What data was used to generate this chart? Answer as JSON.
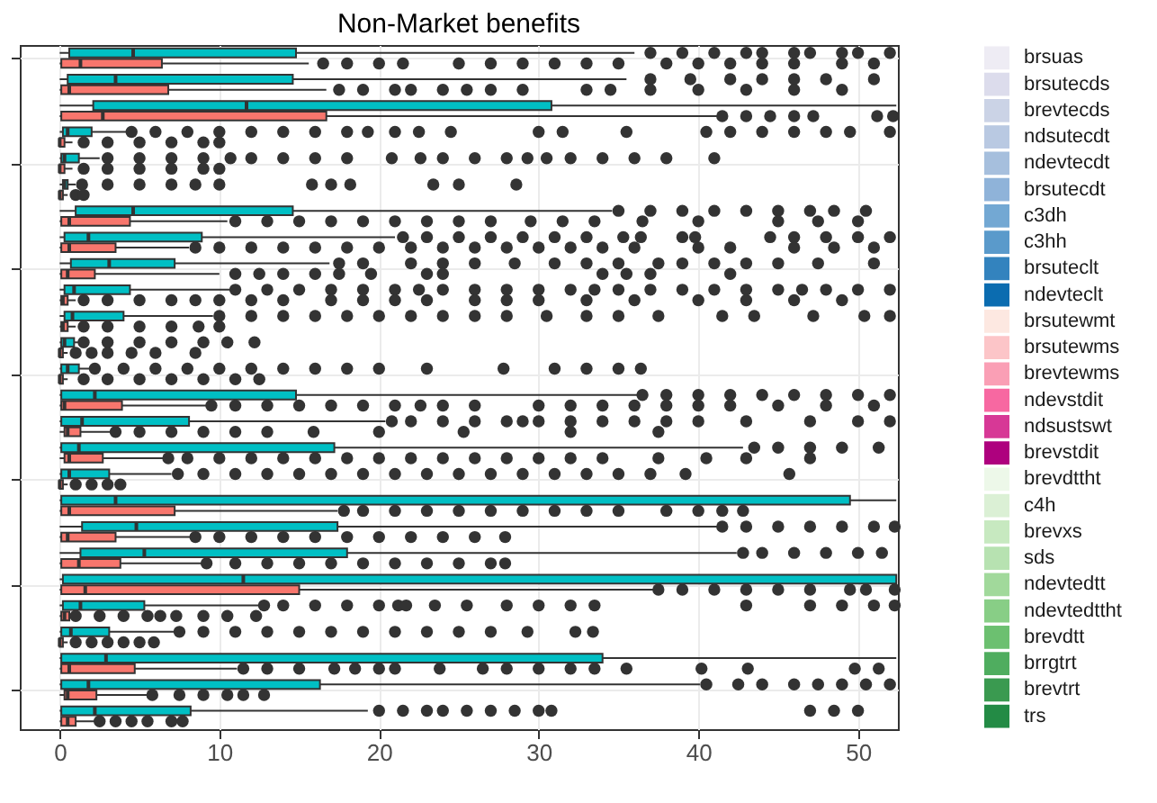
{
  "chart_data": [
    {
      "type": "box",
      "title": "Non-Market benefits",
      "orientation": "horizontal",
      "xlim": [
        -2.5,
        52.5
      ],
      "xticks": [
        0,
        10,
        20,
        30,
        40,
        50
      ],
      "grid": true,
      "tick_labels": "x",
      "categories": [
        null,
        null,
        null,
        null,
        null,
        null,
        null,
        null,
        null,
        null,
        null,
        null,
        null,
        null,
        null,
        null,
        null,
        null,
        null,
        null,
        null,
        null,
        null,
        null,
        null,
        null
      ],
      "series": [
        {
          "color": "#00bfc4",
          "boxes": [
            {
              "low": 0,
              "q1": 0.6,
              "median": 4.6,
              "q3": 14.8,
              "high": 36,
              "outliers": [
                37,
                39,
                41,
                43,
                44,
                46,
                47,
                49,
                50,
                52
              ]
            },
            {
              "low": 0,
              "q1": 0.5,
              "median": 3.5,
              "q3": 14.6,
              "high": 35.5,
              "outliers": [
                37,
                39.5,
                42,
                44,
                46,
                48,
                51
              ]
            },
            {
              "low": 0,
              "q1": 2.1,
              "median": 11.7,
              "q3": 30.8,
              "high": 52.4
            },
            {
              "low": 0,
              "q1": 0.2,
              "median": 0.5,
              "q3": 2.0,
              "high": 4.3,
              "outliers": [
                4.5,
                6,
                8,
                10,
                12,
                14,
                16,
                18,
                19.3,
                21,
                22.5,
                24.5,
                30,
                31.5,
                35.5,
                40.5,
                42,
                44,
                46,
                48,
                49.5,
                52
              ]
            },
            {
              "low": 0,
              "q1": 0.1,
              "median": 0.3,
              "q3": 1.2,
              "high": 2.5,
              "outliers": [
                3,
                5,
                7,
                9,
                10.7,
                12,
                14,
                16,
                18,
                20.8,
                22.6,
                24,
                26,
                28,
                29.3,
                30.5,
                32,
                34,
                36,
                38,
                41
              ]
            },
            {
              "low": 0,
              "q1": 0.2,
              "median": 0.3,
              "q3": 0.5,
              "high": 1,
              "outliers": [
                1.4,
                3,
                5,
                7,
                8.5,
                10,
                15.8,
                17,
                18.2,
                23.4,
                25,
                28.6
              ]
            },
            {
              "low": 0,
              "q1": 1.0,
              "median": 4.6,
              "q3": 14.6,
              "high": 34.6,
              "outliers": [
                35,
                37,
                39,
                41,
                43,
                45,
                47,
                48.5,
                50.5
              ]
            },
            {
              "low": 0,
              "q1": 0.3,
              "median": 1.8,
              "q3": 8.9,
              "high": 21,
              "outliers": [
                21.5,
                23,
                25,
                27,
                29,
                31,
                33,
                35.3,
                36.4,
                39,
                39.8,
                44.5,
                46,
                48,
                50,
                52
              ]
            },
            {
              "low": 0,
              "q1": 0.7,
              "median": 3.1,
              "q3": 7.2,
              "high": 16.9,
              "outliers": [
                17.5,
                19,
                22,
                24,
                26,
                28.5,
                31,
                33,
                35,
                37.5,
                39,
                41,
                43,
                45,
                47.5,
                51
              ]
            },
            {
              "low": 0,
              "q1": 0.3,
              "median": 0.9,
              "q3": 4.4,
              "high": 10.7,
              "outliers": [
                11,
                13,
                15,
                17,
                19,
                21,
                22.5,
                24,
                26,
                28,
                30,
                32,
                33.5,
                35,
                37,
                39,
                41,
                43,
                45,
                46.5,
                48,
                50,
                52
              ]
            },
            {
              "low": 0,
              "q1": 0.3,
              "median": 0.8,
              "q3": 4.0,
              "high": 9.6,
              "outliers": [
                10,
                12,
                14,
                16,
                18,
                20,
                22,
                24,
                26,
                28,
                30.5,
                33,
                35,
                37.5,
                41.5,
                43.5,
                47.2,
                50.4,
                52
              ]
            },
            {
              "low": 0,
              "q1": 0.1,
              "median": 0.3,
              "q3": 0.9,
              "high": 1.2,
              "outliers": [
                1.5,
                3,
                5,
                7,
                9,
                10.5,
                12.2
              ]
            },
            {
              "low": 0,
              "q1": 0.1,
              "median": 0.5,
              "q3": 1.2,
              "high": 2,
              "outliers": [
                2.2,
                4,
                6,
                8,
                10,
                12,
                14,
                16,
                18,
                20,
                23,
                27.8,
                31,
                33,
                35,
                36.4
              ]
            },
            {
              "low": 0,
              "q1": 0.1,
              "median": 2.2,
              "q3": 14.8,
              "high": 36.2,
              "outliers": [
                36.5,
                38,
                40,
                42,
                44,
                46,
                48,
                50,
                52
              ]
            },
            {
              "low": 0,
              "q1": 0.1,
              "median": 1.4,
              "q3": 8.1,
              "high": 20.4,
              "outliers": [
                20.8,
                22,
                24,
                26,
                28,
                29,
                30,
                32,
                34,
                36,
                38,
                40,
                43,
                47,
                50,
                52
              ]
            },
            {
              "low": 0,
              "q1": 0.1,
              "median": 1.2,
              "q3": 17.2,
              "high": 42.8,
              "outliers": [
                43.5,
                45,
                47,
                49,
                51.3
              ]
            },
            {
              "low": 0,
              "q1": 0.1,
              "median": 0.6,
              "q3": 3.1,
              "high": 7,
              "outliers": [
                7.4,
                9,
                11,
                13,
                15,
                17,
                19,
                21,
                23,
                25,
                27,
                29,
                31,
                33,
                35,
                37,
                39.2,
                45.7
              ]
            },
            {
              "low": 0,
              "q1": 0.1,
              "median": 3.5,
              "q3": 49.5,
              "high": 52.4
            },
            {
              "low": 0,
              "q1": 1.4,
              "median": 4.8,
              "q3": 17.4,
              "high": 41.3,
              "outliers": [
                41.5,
                43,
                45,
                47,
                49,
                51,
                52.3
              ]
            },
            {
              "low": 0,
              "q1": 1.3,
              "median": 5.3,
              "q3": 18,
              "high": 42.4,
              "outliers": [
                42.8,
                44,
                46,
                48,
                50,
                51.5
              ]
            },
            {
              "low": 0,
              "q1": 0.2,
              "median": 11.5,
              "q3": 52.4,
              "high": 52.4
            },
            {
              "low": 0,
              "q1": 0.2,
              "median": 1.3,
              "q3": 5.3,
              "high": 12.6,
              "outliers": [
                12.8,
                14,
                16,
                18,
                20,
                21.2,
                21.7,
                23.5,
                25.5,
                28,
                30,
                32,
                33.5,
                43,
                47,
                49,
                51,
                52.3
              ]
            },
            {
              "low": 0,
              "q1": 0.1,
              "median": 0.7,
              "q3": 3.1,
              "high": 7.2,
              "outliers": [
                7.5,
                9,
                11,
                13,
                15,
                17,
                19,
                21,
                23,
                25,
                27,
                29.3,
                32.3,
                33.4
              ]
            },
            {
              "low": 0,
              "q1": 0.1,
              "median": 2.9,
              "q3": 34,
              "high": 52.4
            },
            {
              "low": 0,
              "q1": 0.1,
              "median": 1.8,
              "q3": 16.3,
              "high": 40.1,
              "outliers": [
                40.5,
                42.5,
                44,
                46,
                47.5,
                49,
                50.5,
                52
              ]
            },
            {
              "low": 0,
              "q1": 0.1,
              "median": 2.2,
              "q3": 8.2,
              "high": 19.3,
              "outliers": [
                20,
                21.5,
                23,
                24,
                25.5,
                27,
                28.5,
                30,
                30.8,
                47,
                48.5,
                50
              ]
            }
          ]
        },
        {
          "color": "#f8766d",
          "boxes": [
            {
              "low": 0,
              "q1": 0.1,
              "median": 1.3,
              "q3": 6.4,
              "high": 15.6,
              "outliers": [
                16.5,
                18,
                20,
                21.5,
                25,
                27,
                29,
                31,
                33,
                35,
                38,
                40,
                42,
                44,
                46,
                49,
                51
              ]
            },
            {
              "low": 0,
              "q1": 0.1,
              "median": 0.6,
              "q3": 6.8,
              "high": 16.7,
              "outliers": [
                17.5,
                19,
                21,
                22,
                24,
                25.5,
                27,
                29,
                33,
                34.5,
                37,
                40,
                43,
                46,
                49
              ]
            },
            {
              "low": 0,
              "q1": 0.1,
              "median": 2.7,
              "q3": 16.7,
              "high": 41.3,
              "outliers": [
                41.5,
                43,
                44.5,
                46,
                47.2,
                51.2,
                52.2
              ]
            },
            {
              "low": 0,
              "q1": 0,
              "median": 0,
              "q3": 0.3,
              "high": 0.8,
              "outliers": [
                1.5,
                3,
                5,
                7,
                9,
                10
              ]
            },
            {
              "low": 0,
              "q1": 0,
              "median": 0,
              "q3": 0.3,
              "high": 0.8,
              "outliers": [
                1.5,
                3,
                5,
                7,
                9,
                10
              ]
            },
            {
              "low": 0,
              "q1": 0,
              "median": 0,
              "q3": 0.2,
              "high": 0.5,
              "outliers": [
                1,
                1.5
              ]
            },
            {
              "low": 0,
              "q1": 0.1,
              "median": 0.6,
              "q3": 4.4,
              "high": 10.5,
              "outliers": [
                11,
                13,
                15,
                17,
                19,
                21,
                23,
                25,
                27,
                29.5,
                31.5,
                33.5,
                36.5,
                40,
                45,
                47.5,
                50
              ]
            },
            {
              "low": 0,
              "q1": 0.1,
              "median": 0.6,
              "q3": 3.5,
              "high": 8.1,
              "outliers": [
                8.5,
                10,
                12,
                14,
                16,
                18,
                20,
                22,
                24,
                26,
                28,
                30,
                32,
                34,
                36,
                40,
                42,
                46,
                48.5,
                51
              ]
            },
            {
              "low": 0,
              "q1": 0.1,
              "median": 0.5,
              "q3": 2.2,
              "high": 10,
              "outliers": [
                11,
                12.5,
                14,
                16,
                17.5,
                19.5,
                23,
                24,
                34,
                35.5,
                37,
                42
              ]
            },
            {
              "low": 0,
              "q1": 0.1,
              "median": 0.2,
              "q3": 0.5,
              "high": 1,
              "outliers": [
                1.5,
                3,
                5,
                7,
                8.5,
                10,
                12,
                14,
                17,
                19,
                21,
                23,
                26,
                28,
                30,
                33,
                36,
                40,
                43,
                46,
                49
              ]
            },
            {
              "low": 0,
              "q1": 0.1,
              "median": 0.2,
              "q3": 0.5,
              "high": 1,
              "outliers": [
                1.5,
                3,
                5,
                7,
                8.7,
                10
              ]
            },
            {
              "low": 0,
              "q1": 0,
              "median": 0,
              "q3": 0.2,
              "high": 0.5,
              "outliers": [
                1,
                2,
                3,
                4.5,
                6,
                8.5
              ]
            },
            {
              "low": 0,
              "q1": 0,
              "median": 0,
              "q3": 0.2,
              "high": 0.5,
              "outliers": [
                1.5,
                3,
                5,
                7,
                9,
                11,
                12.5
              ]
            },
            {
              "low": 0,
              "q1": 0.1,
              "median": 0.3,
              "q3": 3.9,
              "high": 9.2,
              "outliers": [
                9.5,
                11,
                13,
                15,
                17,
                19,
                21,
                22.6,
                24,
                26,
                30,
                32,
                34,
                36,
                38,
                40,
                42,
                45,
                48,
                51
              ]
            },
            {
              "low": 0,
              "q1": 0.3,
              "median": 0.5,
              "q3": 1.3,
              "high": 3.3,
              "outliers": [
                3.5,
                5,
                7,
                9,
                11,
                13,
                15.9,
                20,
                25.3,
                32,
                37.5
              ]
            },
            {
              "low": 0,
              "q1": 0.3,
              "median": 0.6,
              "q3": 2.7,
              "high": 6.6,
              "outliers": [
                6.8,
                8,
                10,
                12,
                14,
                16,
                18,
                20,
                22,
                24,
                26,
                28,
                30,
                32,
                34,
                37.5,
                40.5,
                43,
                47
              ]
            },
            {
              "low": 0,
              "q1": 0,
              "median": 0,
              "q3": 0.2,
              "high": 0.5,
              "outliers": [
                1,
                2,
                3,
                3.8
              ]
            },
            {
              "low": 0,
              "q1": 0.1,
              "median": 0.6,
              "q3": 7.2,
              "high": 17.4,
              "outliers": [
                17.8,
                19,
                21,
                23,
                25,
                27,
                29,
                31,
                33,
                35,
                38,
                40,
                41.5,
                42.8
              ]
            },
            {
              "low": 0,
              "q1": 0.1,
              "median": 0.5,
              "q3": 3.5,
              "high": 8.3,
              "outliers": [
                8.5,
                10,
                12,
                14,
                16,
                18,
                20,
                22,
                24,
                26,
                27.9
              ]
            },
            {
              "low": 0,
              "q1": 0.1,
              "median": 1.2,
              "q3": 3.8,
              "high": 8.9,
              "outliers": [
                9.2,
                11,
                13,
                15,
                17,
                19,
                21,
                23,
                25,
                27,
                27.9
              ]
            },
            {
              "low": 0,
              "q1": 0.1,
              "median": 1.6,
              "q3": 15,
              "high": 37.2,
              "outliers": [
                37.5,
                39,
                41,
                43,
                45,
                47,
                49.5,
                50.5,
                52.3
              ]
            },
            {
              "low": 0,
              "q1": 0.1,
              "median": 0.3,
              "q3": 0.6,
              "high": 0.8,
              "outliers": [
                1,
                2.5,
                4,
                5.5,
                6.3,
                7.3,
                9,
                10.5,
                12.3
              ]
            },
            {
              "low": 0,
              "q1": 0,
              "median": 0,
              "q3": 0.2,
              "high": 0.5,
              "outliers": [
                1,
                2,
                3,
                4,
                5,
                5.9
              ]
            },
            {
              "low": 0,
              "q1": 0.1,
              "median": 0.6,
              "q3": 4.7,
              "high": 11.1,
              "outliers": [
                11.5,
                13,
                15,
                17.2,
                18.5,
                20,
                21,
                23.8,
                26.5,
                28,
                30,
                32,
                33.5,
                35.5,
                40.2,
                43.1,
                49.8,
                51.3
              ]
            },
            {
              "low": 0,
              "q1": 0.3,
              "median": 0.5,
              "q3": 2.3,
              "high": 5.5,
              "outliers": [
                5.8,
                7.5,
                9,
                10.5,
                11.5,
                12.8
              ]
            },
            {
              "low": 0,
              "q1": 0.1,
              "median": 0.5,
              "q3": 1.0,
              "high": 2.3,
              "outliers": [
                2.5,
                3.5,
                4.5,
                5.5,
                7,
                7.7
              ]
            }
          ]
        }
      ]
    },
    {
      "type": "other",
      "categories": [
        "brsuas",
        "brsutecds",
        "brevtecds",
        "ndsutecdt",
        "ndevtecdt",
        "brsutecdt",
        "c3dh",
        "c3hh",
        "brsuteclt",
        "ndevteclt",
        "brsutewmt",
        "brsutewms",
        "brevtewms",
        "ndevstdit",
        "ndsustswt",
        "brevstdit",
        "brevdttht",
        "c4h",
        "brevxs",
        "sds",
        "ndevtedtt",
        "ndevtedttht",
        "brevdtt",
        "brrgtrt",
        "brevtrt",
        "trs"
      ],
      "colors": [
        "#eeecf4",
        "#dcdcec",
        "#cbd3e6",
        "#b9c9e2",
        "#a6bfdd",
        "#8fb3d9",
        "#73a8d3",
        "#5a9acb",
        "#3383be",
        "#0b6cb0",
        "#fde8e1",
        "#fcc5c8",
        "#fa9fb5",
        "#f768a1",
        "#d73896",
        "#ae017e",
        "#edf8e9",
        "#dbf0d5",
        "#c7e9c0",
        "#b7e2b1",
        "#a1d99b",
        "#88ce86",
        "#6cc070",
        "#4fad5f",
        "#3a9a50",
        "#238b45"
      ]
    }
  ]
}
